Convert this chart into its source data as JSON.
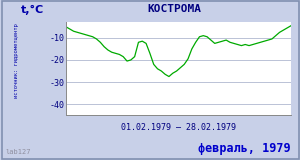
{
  "title": "КОСТРОМА",
  "ylabel": "t,°C",
  "xlabel_range": "01.02.1979 – 28.02.1979",
  "footer_label": "февраль, 1979",
  "source_label": "источник: гидрометцентр",
  "watermark": "lab127",
  "background_color": "#c8d0e8",
  "plot_bg_color": "#ffffff",
  "line_color": "#00aa00",
  "title_color": "#000080",
  "footer_color": "#0000cc",
  "axis_label_color": "#0000aa",
  "tick_label_color": "#000080",
  "grid_color": "#b0b8d0",
  "border_color": "#8090b0",
  "ylim": [
    -45,
    -3
  ],
  "yticks": [
    -40,
    -30,
    -20,
    -10
  ],
  "temps": [
    -5.0,
    -6.0,
    -7.0,
    -7.5,
    -8.0,
    -8.5,
    -9.0,
    -9.5,
    -10.5,
    -12.0,
    -14.0,
    -15.5,
    -16.5,
    -17.0,
    -17.5,
    -18.5,
    -20.5,
    -20.0,
    -18.5,
    -12.0,
    -11.5,
    -12.5,
    -17.0,
    -22.0,
    -24.0,
    -25.0,
    -26.5,
    -27.5,
    -26.0,
    -25.0,
    -23.5,
    -22.0,
    -19.5,
    -15.0,
    -12.0,
    -9.5,
    -9.0,
    -9.5,
    -11.0,
    -12.5,
    -12.0,
    -11.5,
    -11.0,
    -12.0,
    -12.5,
    -13.0,
    -13.5,
    -13.0,
    -13.5,
    -13.0,
    -12.5,
    -12.0,
    -11.5,
    -11.0,
    -10.5,
    -9.0,
    -7.5,
    -6.5,
    -5.5,
    -4.5
  ]
}
